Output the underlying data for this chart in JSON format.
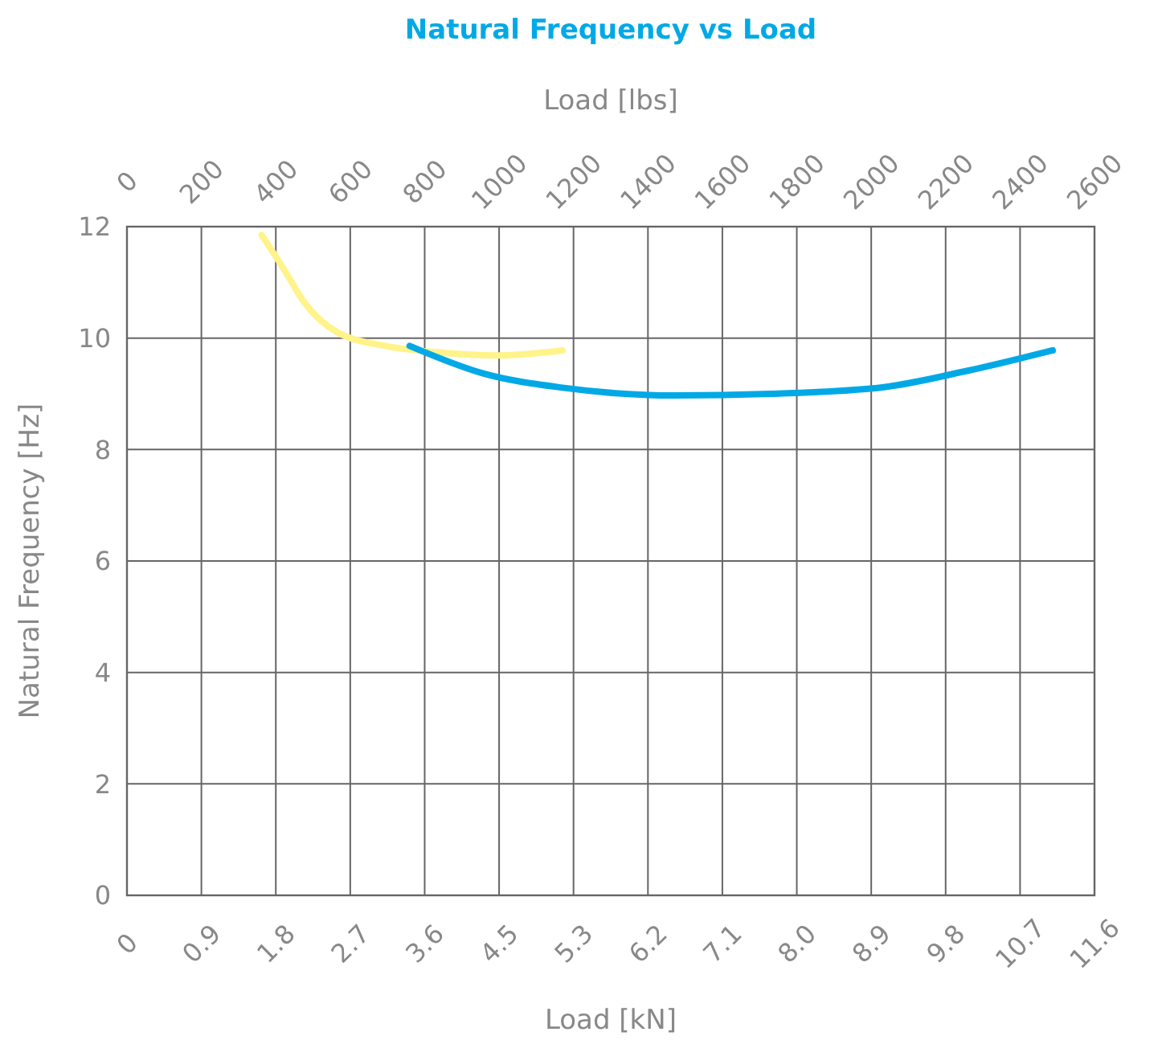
{
  "chart_data": {
    "type": "line",
    "title": "Natural Frequency vs Load",
    "xlabel": "Load [kN]",
    "x2label": "Load [lbs]",
    "ylabel": "Natural Frequency [Hz]",
    "xlim": [
      0,
      11.57
    ],
    "xticks": [
      0,
      {
        "value": 0.89,
        "label": "0.9"
      },
      {
        "value": 1.78,
        "label": "1.8"
      },
      {
        "value": 2.67,
        "label": "2.7"
      },
      {
        "value": 3.56,
        "label": "3.6"
      },
      {
        "value": 4.45,
        "label": "4.5"
      },
      {
        "value": 5.34,
        "label": "5.3"
      },
      {
        "value": 6.23,
        "label": "6.2"
      },
      {
        "value": 7.12,
        "label": "7.1"
      },
      {
        "value": 8.01,
        "label": "8.0"
      },
      {
        "value": 8.9,
        "label": "8.9"
      },
      {
        "value": 9.79,
        "label": "9.8"
      },
      {
        "value": 10.68,
        "label": "10.7"
      },
      {
        "value": 11.57,
        "label": "11.6"
      }
    ],
    "x2lim": [
      0,
      2600
    ],
    "x2ticks": [
      0,
      200,
      400,
      600,
      800,
      1000,
      1200,
      1400,
      1600,
      1800,
      2000,
      2200,
      2400,
      2600
    ],
    "ylim": [
      0,
      12
    ],
    "yticks": [
      0,
      2,
      4,
      6,
      8,
      10,
      12
    ],
    "grid": true,
    "marker": "none",
    "line_style": "solid",
    "series": [
      {
        "color": "#fff38a",
        "x": [
          1.61,
          1.85,
          2.14,
          2.52,
          3.09,
          3.67,
          4.44,
          5.21
        ],
        "values": [
          11.85,
          11.3,
          10.6,
          10.1,
          9.86,
          9.75,
          9.69,
          9.78
        ]
      },
      {
        "color": "#00a9e6",
        "x": [
          3.38,
          4.25,
          5.21,
          6.55,
          7.7,
          9.05,
          10.01,
          11.07
        ],
        "values": [
          9.86,
          9.37,
          9.11,
          8.97,
          9.0,
          9.12,
          9.4,
          9.78
        ]
      }
    ]
  }
}
